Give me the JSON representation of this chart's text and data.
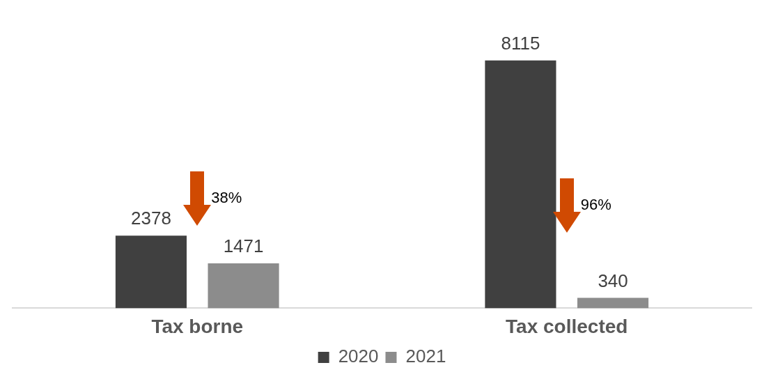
{
  "chart_data": {
    "type": "bar",
    "categories": [
      "Tax borne",
      "Tax collected"
    ],
    "series": [
      {
        "name": "2020",
        "color": "#404040",
        "values": [
          2378,
          8115
        ]
      },
      {
        "name": "2021",
        "color": "#8c8c8c",
        "values": [
          1471,
          340
        ]
      }
    ],
    "data_labels": true,
    "legend": "bottom",
    "annotations": [
      "38%",
      "96%"
    ]
  }
}
